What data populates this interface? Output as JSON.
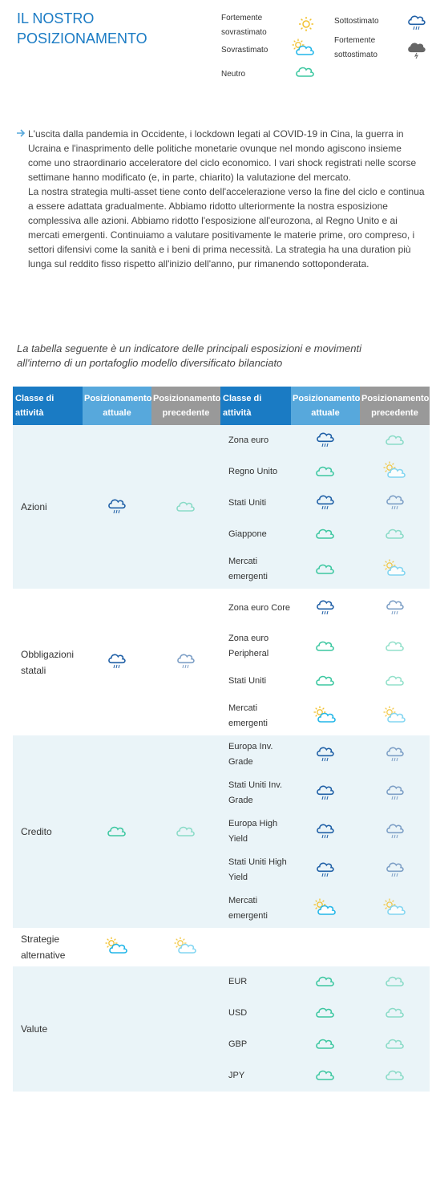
{
  "title": "IL NOSTRO POSIZIONAMENTO",
  "legend": {
    "strong_over": "Fortemente sovrastimato",
    "over": "Sovrastimato",
    "neutral": "Neutro",
    "under": "Sottostimato",
    "strong_under": "Fortemente sottostimato"
  },
  "bullet": {
    "p1": "L'uscita dalla pandemia in Occidente, i lockdown legati al COVID-19 in Cina, la guerra in Ucraina e l'inasprimento delle politiche monetarie ovunque nel mondo agiscono insieme come uno straordinario acceleratore del ciclo economico. I vari shock registrati nelle scorse settimane hanno modificato (e, in parte, chiarito) la valutazione del mercato.",
    "p2": "La nostra strategia multi-asset tiene conto dell'accelerazione verso la fine del ciclo e continua a essere adattata gradualmente. Abbiamo ridotto ulteriormente la nostra esposizione complessiva alle azioni. Abbiamo ridotto l'esposizione all'eurozona, al Regno Unito e ai mercati emergenti. Continuiamo a valutare positivamente le materie prime, oro compreso, i settori difensivi come la sanità e i beni di prima necessità. La strategia ha una duration più lunga sul reddito fisso rispetto all'inizio dell'anno, pur rimanendo sottoponderata."
  },
  "intro": "La tabella seguente è un indicatore delle principali esposizioni e movimenti all'interno di un portafoglio modello diversificato bilanciato",
  "table": {
    "headers": {
      "class": "Classe di attività",
      "current": "Posizionamento attuale",
      "previous": "Posizionamento precedente",
      "class2": "Classe di attività",
      "current2": "Posizionamento attuale",
      "previous2": "Posizionamento precedente"
    },
    "groups": [
      {
        "name": "Azioni",
        "current": "rain",
        "previous": "neutral-light",
        "band": "a",
        "rows": [
          {
            "name": "Zona euro",
            "current": "rain",
            "previous": "neutral-light"
          },
          {
            "name": "Regno Unito",
            "current": "neutral",
            "previous": "sun-cloud-light"
          },
          {
            "name": "Stati Uniti",
            "current": "rain",
            "previous": "rain-light"
          },
          {
            "name": "Giappone",
            "current": "neutral",
            "previous": "neutral-light"
          },
          {
            "name": "Mercati emergenti",
            "current": "neutral",
            "previous": "sun-cloud-light"
          }
        ]
      },
      {
        "name": "Obbligazioni statali",
        "current": "rain",
        "previous": "rain-light",
        "band": "b",
        "rows": [
          {
            "name": "Zona euro Core",
            "current": "rain",
            "previous": "rain-light"
          },
          {
            "name": "Zona euro Peripheral",
            "current": "neutral",
            "previous": "neutral-light"
          },
          {
            "name": "Stati Uniti",
            "current": "neutral",
            "previous": "neutral-light"
          },
          {
            "name": "Mercati emergenti",
            "current": "sun-cloud",
            "previous": "sun-cloud-light"
          }
        ]
      },
      {
        "name": "Credito",
        "current": "neutral",
        "previous": "neutral-light",
        "band": "a",
        "rows": [
          {
            "name": "Europa Inv. Grade",
            "current": "rain",
            "previous": "rain-light"
          },
          {
            "name": "Stati Uniti Inv. Grade",
            "current": "rain",
            "previous": "rain-light"
          },
          {
            "name": "Europa High Yield",
            "current": "rain",
            "previous": "rain-light"
          },
          {
            "name": "Stati Uniti High Yield",
            "current": "rain",
            "previous": "rain-light"
          },
          {
            "name": "Mercati emergenti",
            "current": "sun-cloud",
            "previous": "sun-cloud-light"
          }
        ]
      },
      {
        "name": "Strategie alternative",
        "current": "sun-cloud",
        "previous": "sun-cloud-light",
        "band": "b",
        "rows": []
      },
      {
        "name": "Valute",
        "current": "",
        "previous": "",
        "band": "a",
        "rows": [
          {
            "name": "EUR",
            "current": "neutral",
            "previous": "neutral-light"
          },
          {
            "name": "USD",
            "current": "neutral",
            "previous": "neutral-light"
          },
          {
            "name": "GBP",
            "current": "neutral",
            "previous": "neutral-light"
          },
          {
            "name": "JPY",
            "current": "neutral",
            "previous": "neutral-light"
          }
        ]
      }
    ]
  },
  "colors": {
    "accent": "#1a7bc4",
    "header_current": "#57a8dc",
    "header_previous": "#999999",
    "band": "#eaf4f8",
    "neutral_cloud": "#3cc7a0",
    "rain_cloud": "#1f5fa6",
    "sun": "#f2c12e",
    "sun_cloud": "#22b6e8"
  }
}
